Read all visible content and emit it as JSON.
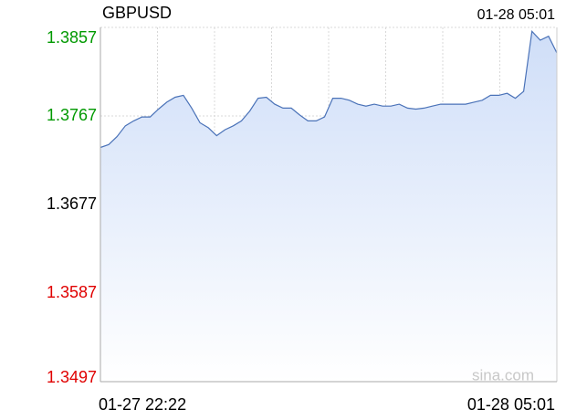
{
  "chart_data": {
    "type": "area",
    "title": "GBPUSD",
    "time": "01-28 05:01",
    "watermark": "sina.com",
    "categories": [
      "01-27 22:22",
      null,
      null,
      null,
      null,
      null,
      null,
      null,
      null,
      null,
      null,
      null,
      null,
      null,
      null,
      null,
      null,
      null,
      null,
      null,
      null,
      null,
      null,
      null,
      null,
      null,
      null,
      null,
      null,
      null,
      null,
      null,
      null,
      null,
      null,
      null,
      null,
      null,
      null,
      null,
      null,
      null,
      null,
      null,
      null,
      null,
      null,
      null,
      null,
      null,
      null,
      null,
      null,
      null,
      null,
      "01-28 05:01"
    ],
    "values": [
      1.3735,
      1.3738,
      1.3746,
      1.3757,
      1.3762,
      1.3766,
      1.3766,
      1.3774,
      1.3781,
      1.3786,
      1.3788,
      1.3775,
      1.376,
      1.3755,
      1.3747,
      1.3753,
      1.3757,
      1.3762,
      1.3772,
      1.3785,
      1.3786,
      1.3779,
      1.3775,
      1.3775,
      1.3768,
      1.3762,
      1.3762,
      1.3766,
      1.3785,
      1.3785,
      1.3783,
      1.3779,
      1.3777,
      1.3779,
      1.3777,
      1.3777,
      1.3779,
      1.3775,
      1.3774,
      1.3775,
      1.3777,
      1.3779,
      1.3779,
      1.3779,
      1.3779,
      1.3781,
      1.3783,
      1.3788,
      1.3788,
      1.379,
      1.3785,
      1.3792,
      1.3853,
      1.3844,
      1.3848,
      1.3831
    ],
    "color": "#4a72b8",
    "ylim": [
      1.3497,
      1.3857
    ],
    "yticks": [
      1.3857,
      1.3767,
      1.3677,
      1.3587,
      1.3497
    ],
    "ytick_colors": [
      "#009900",
      "#009900",
      "#000000",
      "#e00000",
      "#e00000"
    ],
    "grid": true
  }
}
